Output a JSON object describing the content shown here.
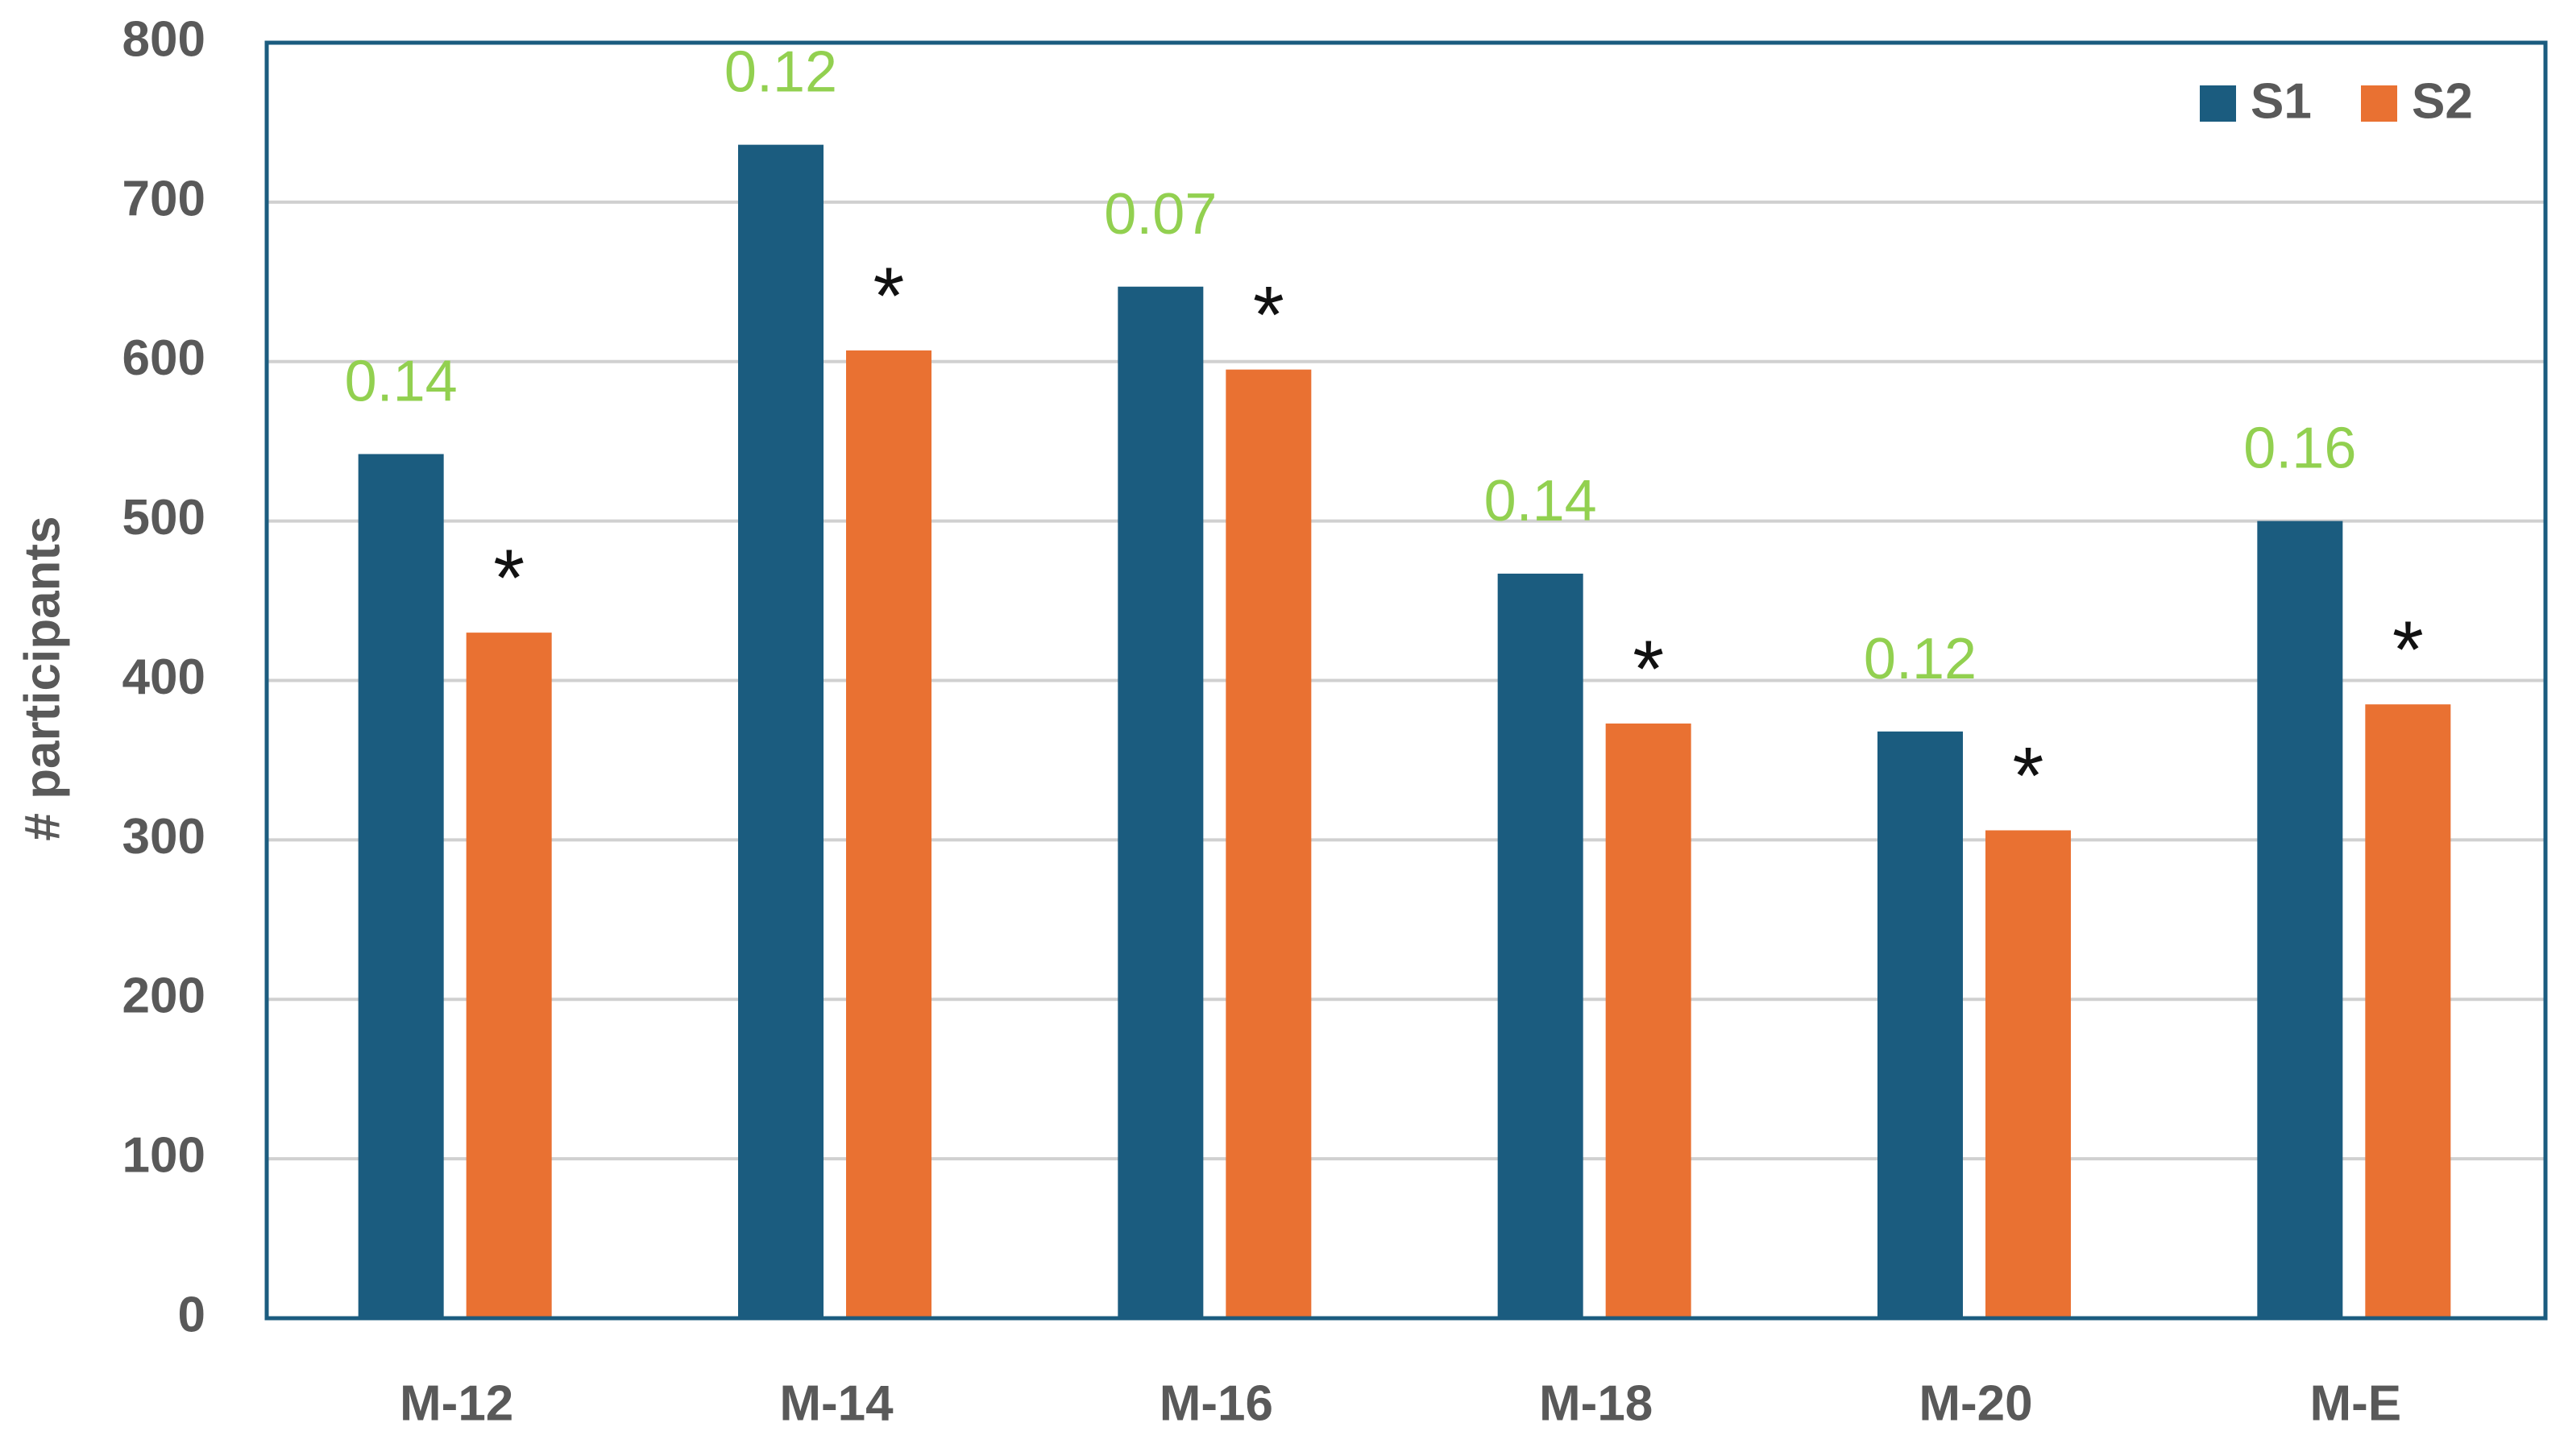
{
  "chart_data": {
    "type": "bar",
    "y_label": "# participants",
    "categories": [
      "M-12",
      "M-14",
      "M-16",
      "M-18",
      "M-20",
      "M-E"
    ],
    "series": [
      {
        "name": "S1",
        "color": "#1b5c7f",
        "values": [
          542,
          736,
          647,
          467,
          368,
          500
        ]
      },
      {
        "name": "S2",
        "color": "#e97132",
        "values": [
          430,
          607,
          595,
          373,
          306,
          385
        ]
      }
    ],
    "annotations": [
      "0.14",
      "0.12",
      "0.07",
      "0.14",
      "0.12",
      "0.16"
    ],
    "annotation_color": "#92d050",
    "markers": [
      "*",
      "*",
      "*",
      "*",
      "*",
      "*"
    ],
    "ylim": [
      0,
      800
    ],
    "yticks": [
      0,
      100,
      200,
      300,
      400,
      500,
      600,
      700,
      800
    ],
    "grid": true,
    "legend": "top-right"
  }
}
